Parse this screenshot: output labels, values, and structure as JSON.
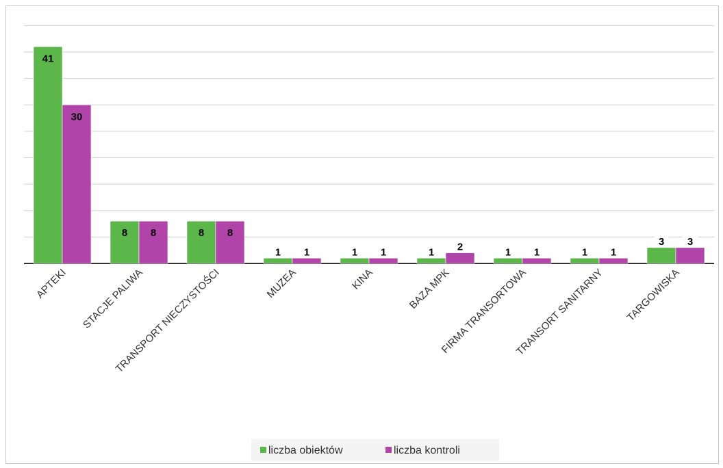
{
  "chart_data": {
    "type": "bar",
    "categories": [
      "APTEKI",
      "STACJE PALIWA",
      "TRANSPORT NIECZYSTOŚCI",
      "MUZEA",
      "KINA",
      "BAZA MPK",
      "FIRMA TRANSORTOWA",
      "TRANSORT SANITARNY",
      "TARGOWISKA"
    ],
    "series": [
      {
        "name": "liczba obiektów",
        "values": [
          41,
          8,
          8,
          1,
          1,
          1,
          1,
          1,
          3
        ],
        "color": "#5cb74a"
      },
      {
        "name": "liczba kontroli",
        "values": [
          30,
          8,
          8,
          1,
          1,
          2,
          1,
          1,
          3
        ],
        "color": "#b044a9"
      }
    ],
    "title": "",
    "xlabel": "",
    "ylabel": "",
    "ylim": [
      0,
      45
    ],
    "grid": true,
    "legend": "bottom"
  }
}
